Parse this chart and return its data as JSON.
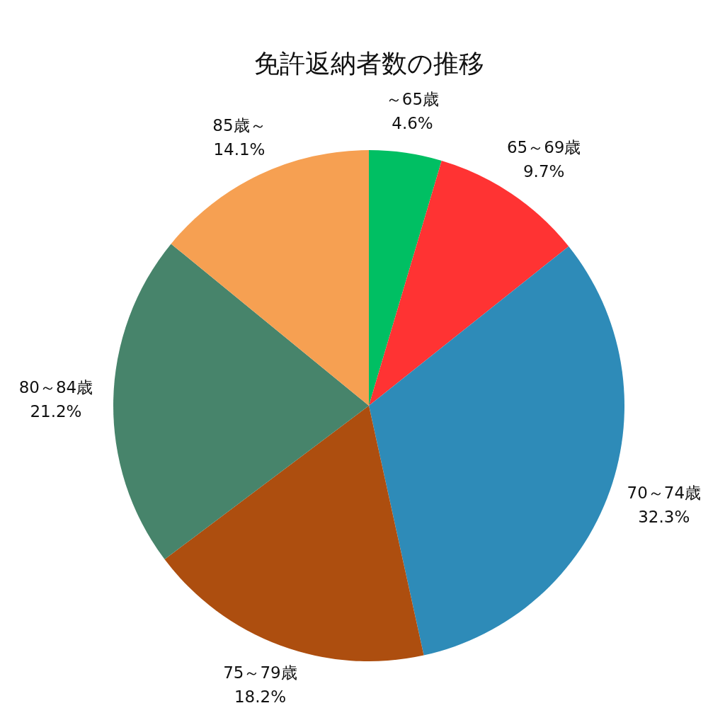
{
  "chart_data": {
    "type": "pie",
    "title": "免許返納者数の推移",
    "categories": [
      "～65歳",
      "65～69歳",
      "70～74歳",
      "75～79歳",
      "80～84歳",
      "85歳～"
    ],
    "values": [
      4.6,
      9.7,
      32.3,
      18.2,
      21.2,
      14.1
    ],
    "value_labels": [
      "4.6%",
      "9.7%",
      "32.3%",
      "18.2%",
      "21.2%",
      "14.1%"
    ],
    "colors": [
      "#00bf63",
      "#ff3333",
      "#2e8bb8",
      "#ad4e0f",
      "#47846b",
      "#f6a052"
    ]
  }
}
